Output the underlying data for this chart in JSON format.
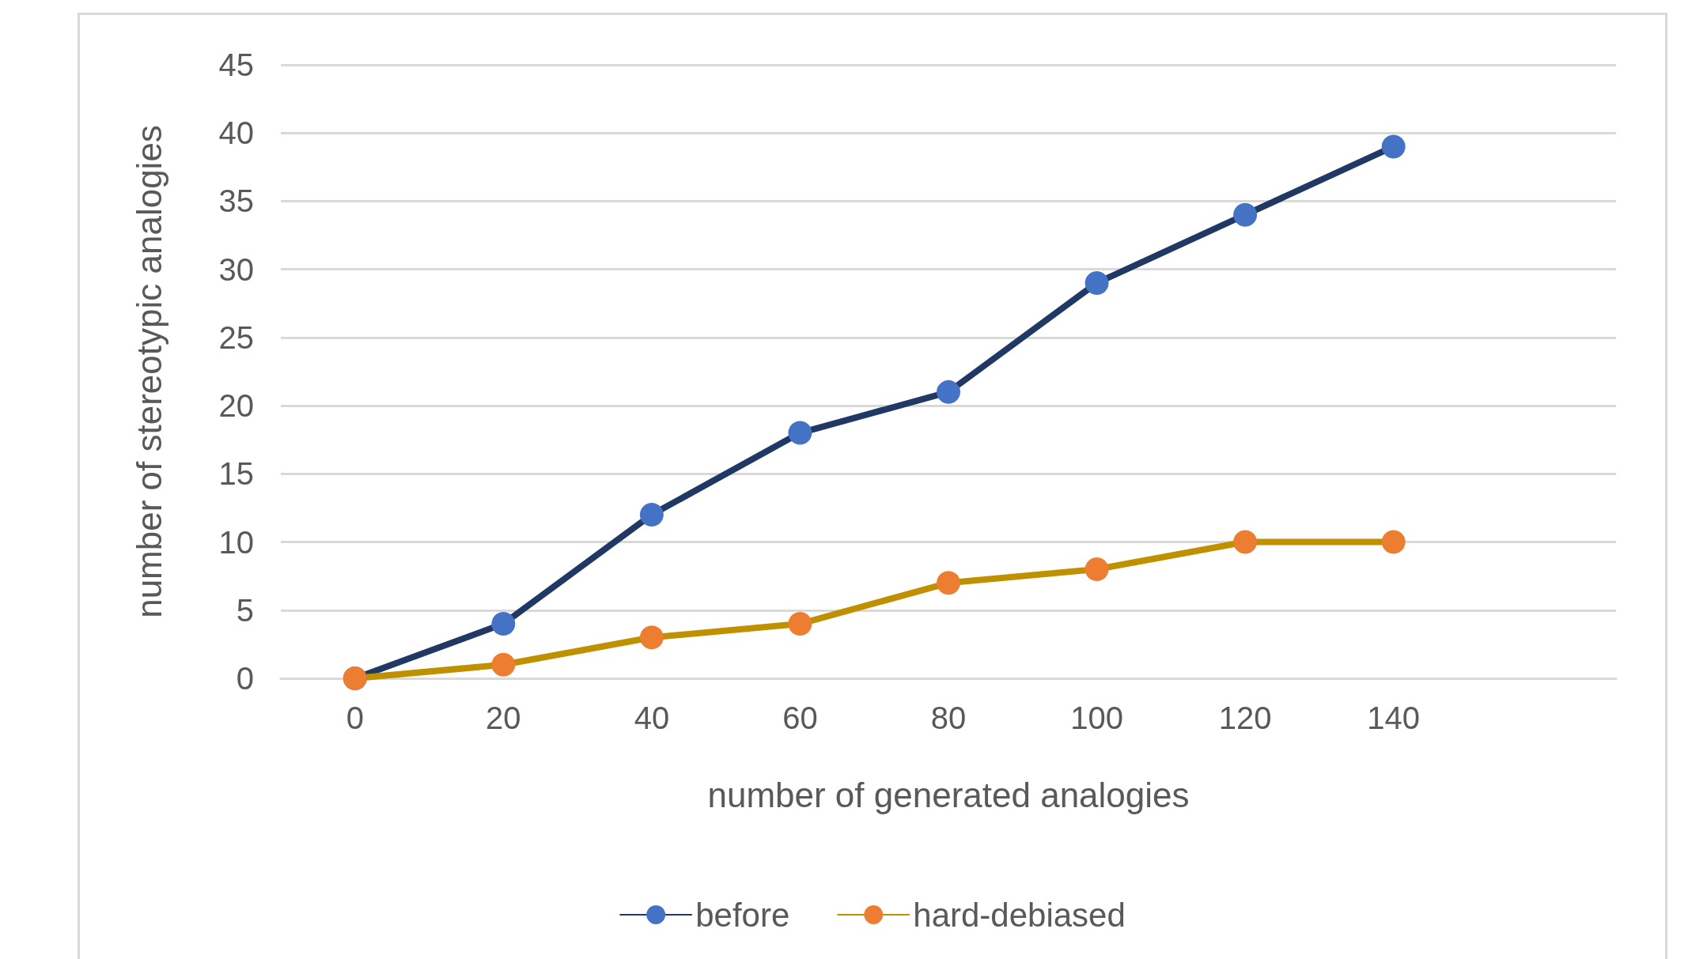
{
  "chart_data": {
    "type": "line",
    "xlabel": "number of generated analogies",
    "ylabel": "number of stereotypic analogies",
    "categories": [
      "0",
      "20",
      "40",
      "60",
      "80",
      "100",
      "120",
      "140",
      null
    ],
    "series": [
      {
        "name": "before",
        "color": "#203864",
        "colors": [
          "#4472c4",
          "#4472c4",
          "#4472c4",
          "#4472c4",
          "#4472c4",
          "#4472c4",
          "#4472c4",
          "#4472c4",
          "#4472c4"
        ],
        "values": [
          0,
          4,
          12,
          18,
          21,
          29,
          34,
          39,
          null
        ]
      },
      {
        "name": "hard-debiased",
        "color": "#bf9000",
        "colors": [
          "#ed7d31",
          "#ed7d31",
          "#ed7d31",
          "#ed7d31",
          "#ed7d31",
          "#ed7d31",
          "#ed7d31",
          "#ed7d31",
          "#ed7d31"
        ],
        "values": [
          0,
          1,
          3,
          4,
          7,
          8,
          10,
          10,
          null
        ]
      }
    ],
    "ylim": [
      0,
      45
    ],
    "yticks": [
      0,
      5,
      10,
      15,
      20,
      25,
      30,
      35,
      40,
      45
    ],
    "grid": "y",
    "legend": "bottom",
    "marker": "circle",
    "line_style": "solid"
  }
}
